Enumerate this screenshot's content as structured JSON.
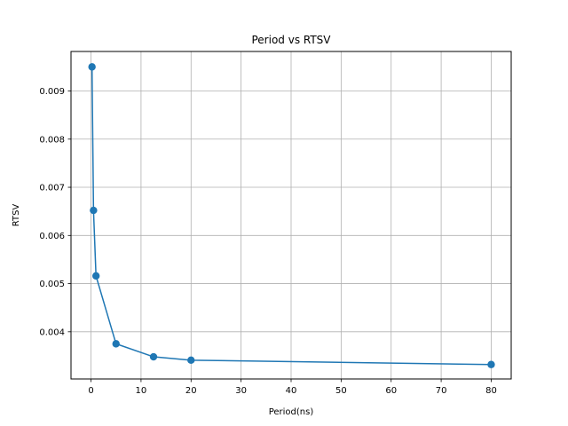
{
  "chart_data": {
    "type": "line",
    "title": "Period vs RTSV",
    "xlabel": "Period(ns)",
    "ylabel": "RTSV",
    "xlim": [
      -4,
      84
    ],
    "ylim": [
      0.00302,
      0.00982
    ],
    "xticks": [
      0,
      10,
      20,
      30,
      40,
      50,
      60,
      70,
      80
    ],
    "yticks": [
      0.004,
      0.005,
      0.006,
      0.007,
      0.008,
      0.009
    ],
    "xtick_labels": [
      "0",
      "10",
      "20",
      "30",
      "40",
      "50",
      "60",
      "70",
      "80"
    ],
    "ytick_labels": [
      "0.004",
      "0.005",
      "0.006",
      "0.007",
      "0.008",
      "0.009"
    ],
    "grid": true,
    "color": "#1f77b4",
    "series": [
      {
        "x": [
          0.2,
          0.5,
          1.0,
          5.0,
          12.5,
          20.0,
          80.0
        ],
        "y": [
          0.0095,
          0.00652,
          0.00516,
          0.00375,
          0.00348,
          0.00341,
          0.00332
        ]
      }
    ]
  }
}
